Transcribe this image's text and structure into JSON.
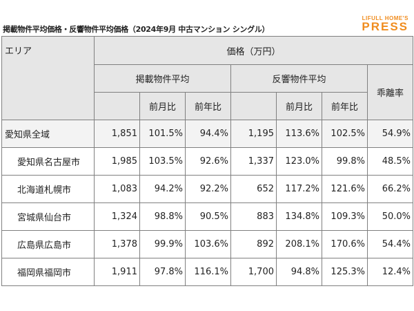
{
  "header": {
    "title": "掲載物件平均価格・反響物件平均価格（2024年9月 中古マンション シングル）",
    "logo_small": "LIFULL HOME'S",
    "logo_big": "PRESS"
  },
  "table": {
    "area_header": "エリア",
    "price_header": "価格（万円）",
    "listing_header": "掲載物件平均",
    "response_header": "反響物件平均",
    "gap_header": "乖離率",
    "mom_label": "前月比",
    "yoy_label": "前年比",
    "rows": [
      {
        "area": "愛知県全域",
        "list_avg": "1,851",
        "list_mom": "101.5%",
        "list_yoy": "94.4%",
        "resp_avg": "1,195",
        "resp_mom": "113.6%",
        "resp_yoy": "102.5%",
        "gap": "54.9%"
      },
      {
        "area": "愛知県名古屋市",
        "list_avg": "1,985",
        "list_mom": "103.5%",
        "list_yoy": "92.6%",
        "resp_avg": "1,337",
        "resp_mom": "123.0%",
        "resp_yoy": "99.8%",
        "gap": "48.5%"
      },
      {
        "area": "北海道札幌市",
        "list_avg": "1,083",
        "list_mom": "94.2%",
        "list_yoy": "92.2%",
        "resp_avg": "652",
        "resp_mom": "117.2%",
        "resp_yoy": "121.6%",
        "gap": "66.2%"
      },
      {
        "area": "宮城県仙台市",
        "list_avg": "1,324",
        "list_mom": "98.8%",
        "list_yoy": "90.5%",
        "resp_avg": "883",
        "resp_mom": "134.8%",
        "resp_yoy": "109.3%",
        "gap": "50.0%"
      },
      {
        "area": "広島県広島市",
        "list_avg": "1,378",
        "list_mom": "99.9%",
        "list_yoy": "103.6%",
        "resp_avg": "892",
        "resp_mom": "208.1%",
        "resp_yoy": "170.6%",
        "gap": "54.4%"
      },
      {
        "area": "福岡県福岡市",
        "list_avg": "1,911",
        "list_mom": "97.8%",
        "list_yoy": "116.1%",
        "resp_avg": "1,700",
        "resp_mom": "94.8%",
        "resp_yoy": "125.3%",
        "gap": "12.4%"
      }
    ]
  }
}
